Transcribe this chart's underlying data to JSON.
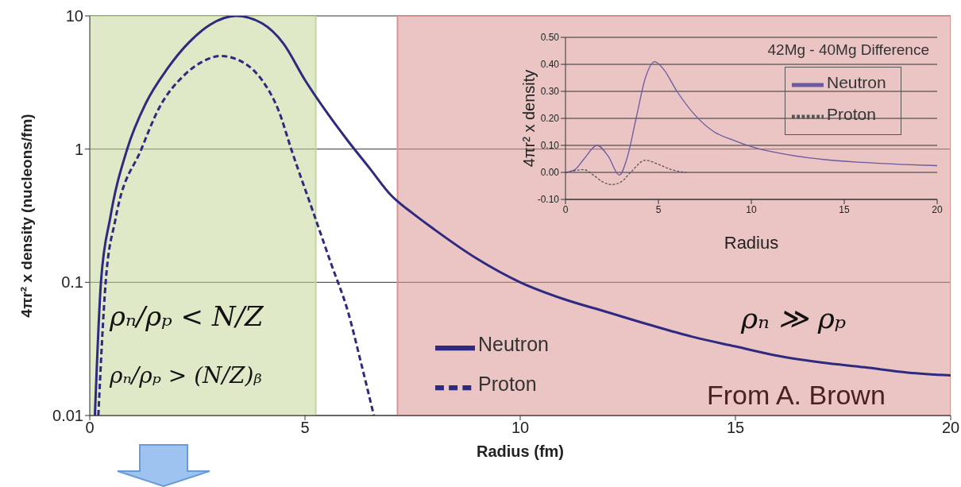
{
  "chart_data": [
    {
      "type": "line",
      "xlabel": "Radius (fm)",
      "ylabel": "4πr² x density (nucleons/fm)",
      "log": "y",
      "xlim": [
        0,
        20
      ],
      "xticks": [
        0,
        5,
        10,
        15,
        20
      ],
      "ylim": [
        0.01,
        10
      ],
      "yticks": [
        0.01,
        0.1,
        1,
        10
      ],
      "grid": "y",
      "legend": "bottom",
      "marker": "none",
      "series": [
        {
          "name": "Neutron",
          "color": "#2e2a80",
          "line_style": "solid",
          "x": [
            0.12,
            0.26,
            0.48,
            0.87,
            1.3,
            1.8,
            2.3,
            2.8,
            3.4,
            4,
            4.5,
            5,
            5.5,
            6,
            6.5,
            7,
            7.5,
            8,
            9,
            10,
            11,
            12,
            13,
            14,
            15,
            16,
            17,
            18,
            19,
            20
          ],
          "values": [
            0.01,
            0.1,
            0.31,
            1,
            2.2,
            4,
            6.3,
            8.6,
            10,
            8.8,
            6.2,
            3.3,
            1.9,
            1.15,
            0.72,
            0.45,
            0.33,
            0.25,
            0.15,
            0.1,
            0.075,
            0.06,
            0.048,
            0.039,
            0.033,
            0.028,
            0.025,
            0.023,
            0.021,
            0.02
          ]
        },
        {
          "name": "Proton",
          "color": "#2e2a80",
          "line_style": "dashed",
          "x": [
            0.2,
            0.37,
            0.6,
            1.2,
            1.6,
            2.2,
            2.6,
            3.05,
            3.6,
            4,
            4.4,
            4.68,
            5.2,
            5.6,
            6,
            6.3,
            6.6
          ],
          "values": [
            0.01,
            0.1,
            0.3,
            1,
            2,
            3.6,
            4.5,
            5,
            4.4,
            3.3,
            1.9,
            1,
            0.33,
            0.14,
            0.06,
            0.025,
            0.01
          ]
        }
      ],
      "bands": [
        {
          "axis": "x",
          "from": 0,
          "to": 5.25,
          "color": "#c4d79b"
        },
        {
          "axis": "x",
          "from": 7.15,
          "to": 20,
          "color": "#d99594"
        }
      ],
      "annotations": [
        "ρₙ/ρₚ < N/Z",
        "ρₙ/ρₚ > (N/Z)ᵦ",
        "ρₙ ≫ ρₚ",
        "From A. Brown"
      ]
    },
    {
      "type": "line",
      "title": "42Mg - 40Mg Difference",
      "xlabel": "Radius",
      "ylabel": "4πr² x density",
      "xlim": [
        0,
        20
      ],
      "xticks": [
        0,
        5,
        10,
        15,
        20
      ],
      "ylim": [
        -0.1,
        0.5
      ],
      "yticks": [
        {
          "value": -0.1,
          "label": "-0.10"
        },
        {
          "value": 0,
          "label": "0.00"
        },
        {
          "value": 0.1,
          "label": "0.10"
        },
        {
          "value": 0.2,
          "label": "0.20"
        },
        {
          "value": 0.3,
          "label": "0.30"
        },
        {
          "value": 0.4,
          "label": "0.40"
        },
        {
          "value": 0.5,
          "label": "0.50"
        }
      ],
      "grid": "y",
      "legend": "top right",
      "marker": "none",
      "series": [
        {
          "name": "Neutron",
          "color": "#6a5aa0",
          "line_style": "solid",
          "x": [
            0,
            0.5,
            1,
            1.7,
            2.3,
            2.9,
            3.3,
            3.8,
            4.3,
            4.8,
            5.3,
            6,
            7,
            8,
            9,
            10,
            12,
            14,
            16,
            18,
            20
          ],
          "values": [
            0,
            0.01,
            0.05,
            0.1,
            0.06,
            -0.01,
            0.05,
            0.2,
            0.35,
            0.41,
            0.38,
            0.3,
            0.21,
            0.15,
            0.12,
            0.095,
            0.065,
            0.047,
            0.037,
            0.03,
            0.025
          ]
        },
        {
          "name": "Proton",
          "color": "#555555",
          "line_style": "dotted",
          "x": [
            0,
            1,
            1.5,
            2,
            2.5,
            3,
            3.5,
            4.3,
            5,
            5.7,
            6.5
          ],
          "values": [
            0,
            0.01,
            -0.01,
            -0.035,
            -0.045,
            -0.035,
            0,
            0.045,
            0.03,
            0.01,
            0
          ]
        }
      ]
    }
  ]
}
